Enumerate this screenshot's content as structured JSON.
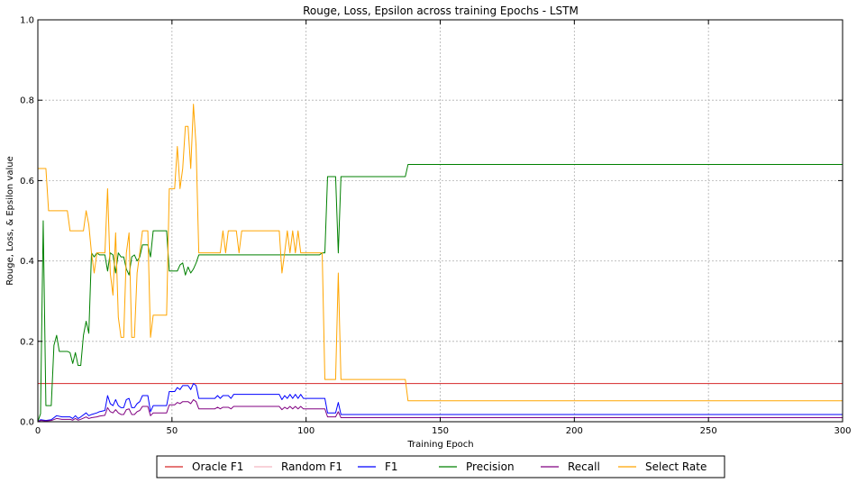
{
  "chart_data": {
    "type": "line",
    "title": "Rouge, Loss, Epsilon across training Epochs - LSTM",
    "xlabel": "Training Epoch",
    "ylabel": "Rouge, Loss, & Epsilon value",
    "xlim": [
      0,
      300
    ],
    "ylim": [
      0,
      1.0
    ],
    "xticks": [
      0,
      50,
      100,
      150,
      200,
      250,
      300
    ],
    "yticks": [
      0.0,
      0.2,
      0.4,
      0.6,
      0.8,
      1.0
    ],
    "ytick_labels": [
      "0.0",
      "0.2",
      "0.4",
      "0.6",
      "0.8",
      "1.0"
    ],
    "grid": true,
    "legend_position": "bottom-center",
    "series": [
      {
        "name": "Oracle F1",
        "color": "#d62728",
        "points": [
          [
            0,
            0.095
          ],
          [
            300,
            0.095
          ]
        ]
      },
      {
        "name": "Random F1",
        "color": "#f4b6c2",
        "points": [
          [
            0,
            0.0
          ],
          [
            300,
            0.0
          ]
        ]
      },
      {
        "name": "F1",
        "color": "#0000ff",
        "points": [
          [
            0,
            0.0
          ],
          [
            1,
            0.005
          ],
          [
            3,
            0.003
          ],
          [
            5,
            0.005
          ],
          [
            7,
            0.015
          ],
          [
            9,
            0.012
          ],
          [
            12,
            0.012
          ],
          [
            13,
            0.008
          ],
          [
            14,
            0.015
          ],
          [
            15,
            0.008
          ],
          [
            16,
            0.012
          ],
          [
            18,
            0.022
          ],
          [
            19,
            0.015
          ],
          [
            20,
            0.018
          ],
          [
            22,
            0.022
          ],
          [
            23,
            0.025
          ],
          [
            25,
            0.028
          ],
          [
            26,
            0.065
          ],
          [
            27,
            0.045
          ],
          [
            28,
            0.04
          ],
          [
            29,
            0.055
          ],
          [
            30,
            0.04
          ],
          [
            31,
            0.035
          ],
          [
            32,
            0.035
          ],
          [
            33,
            0.055
          ],
          [
            34,
            0.058
          ],
          [
            35,
            0.035
          ],
          [
            36,
            0.035
          ],
          [
            37,
            0.045
          ],
          [
            38,
            0.05
          ],
          [
            39,
            0.065
          ],
          [
            40,
            0.065
          ],
          [
            41,
            0.065
          ],
          [
            42,
            0.025
          ],
          [
            43,
            0.04
          ],
          [
            45,
            0.04
          ],
          [
            48,
            0.04
          ],
          [
            49,
            0.075
          ],
          [
            51,
            0.075
          ],
          [
            52,
            0.085
          ],
          [
            53,
            0.08
          ],
          [
            54,
            0.09
          ],
          [
            56,
            0.09
          ],
          [
            57,
            0.08
          ],
          [
            58,
            0.095
          ],
          [
            59,
            0.09
          ],
          [
            60,
            0.058
          ],
          [
            66,
            0.058
          ],
          [
            67,
            0.065
          ],
          [
            68,
            0.058
          ],
          [
            69,
            0.065
          ],
          [
            71,
            0.065
          ],
          [
            72,
            0.058
          ],
          [
            73,
            0.068
          ],
          [
            90,
            0.068
          ],
          [
            91,
            0.055
          ],
          [
            92,
            0.065
          ],
          [
            93,
            0.058
          ],
          [
            94,
            0.068
          ],
          [
            95,
            0.058
          ],
          [
            96,
            0.068
          ],
          [
            97,
            0.058
          ],
          [
            98,
            0.068
          ],
          [
            99,
            0.058
          ],
          [
            107,
            0.058
          ],
          [
            108,
            0.022
          ],
          [
            111,
            0.022
          ],
          [
            112,
            0.048
          ],
          [
            113,
            0.018
          ],
          [
            137,
            0.018
          ],
          [
            138,
            0.018
          ],
          [
            300,
            0.018
          ]
        ]
      },
      {
        "name": "Precision",
        "color": "#008000",
        "points": [
          [
            0,
            0.0
          ],
          [
            1,
            0.02
          ],
          [
            2,
            0.5
          ],
          [
            3,
            0.04
          ],
          [
            5,
            0.04
          ],
          [
            6,
            0.19
          ],
          [
            7,
            0.215
          ],
          [
            8,
            0.175
          ],
          [
            10,
            0.175
          ],
          [
            11,
            0.175
          ],
          [
            12,
            0.172
          ],
          [
            13,
            0.145
          ],
          [
            14,
            0.172
          ],
          [
            15,
            0.14
          ],
          [
            16,
            0.14
          ],
          [
            17,
            0.215
          ],
          [
            18,
            0.25
          ],
          [
            19,
            0.22
          ],
          [
            20,
            0.42
          ],
          [
            21,
            0.41
          ],
          [
            22,
            0.42
          ],
          [
            23,
            0.415
          ],
          [
            25,
            0.415
          ],
          [
            26,
            0.375
          ],
          [
            27,
            0.42
          ],
          [
            28,
            0.415
          ],
          [
            29,
            0.37
          ],
          [
            30,
            0.42
          ],
          [
            31,
            0.41
          ],
          [
            32,
            0.41
          ],
          [
            33,
            0.38
          ],
          [
            34,
            0.365
          ],
          [
            35,
            0.41
          ],
          [
            36,
            0.415
          ],
          [
            37,
            0.4
          ],
          [
            38,
            0.41
          ],
          [
            39,
            0.44
          ],
          [
            41,
            0.44
          ],
          [
            42,
            0.41
          ],
          [
            43,
            0.475
          ],
          [
            46,
            0.475
          ],
          [
            47,
            0.475
          ],
          [
            48,
            0.475
          ],
          [
            49,
            0.375
          ],
          [
            52,
            0.375
          ],
          [
            53,
            0.39
          ],
          [
            54,
            0.395
          ],
          [
            55,
            0.365
          ],
          [
            56,
            0.385
          ],
          [
            57,
            0.37
          ],
          [
            58,
            0.38
          ],
          [
            59,
            0.395
          ],
          [
            60,
            0.415
          ],
          [
            105,
            0.415
          ],
          [
            106,
            0.42
          ],
          [
            107,
            0.42
          ],
          [
            108,
            0.61
          ],
          [
            109,
            0.61
          ],
          [
            111,
            0.61
          ],
          [
            112,
            0.42
          ],
          [
            113,
            0.61
          ],
          [
            136,
            0.61
          ],
          [
            137,
            0.61
          ],
          [
            138,
            0.64
          ],
          [
            300,
            0.64
          ]
        ]
      },
      {
        "name": "Recall",
        "color": "#800080",
        "points": [
          [
            0,
            0.0
          ],
          [
            1,
            0.003
          ],
          [
            3,
            0.002
          ],
          [
            5,
            0.003
          ],
          [
            7,
            0.008
          ],
          [
            9,
            0.006
          ],
          [
            12,
            0.006
          ],
          [
            13,
            0.004
          ],
          [
            14,
            0.008
          ],
          [
            15,
            0.004
          ],
          [
            16,
            0.006
          ],
          [
            18,
            0.012
          ],
          [
            19,
            0.008
          ],
          [
            20,
            0.01
          ],
          [
            22,
            0.012
          ],
          [
            23,
            0.014
          ],
          [
            25,
            0.016
          ],
          [
            26,
            0.035
          ],
          [
            27,
            0.025
          ],
          [
            28,
            0.022
          ],
          [
            29,
            0.03
          ],
          [
            30,
            0.022
          ],
          [
            31,
            0.018
          ],
          [
            32,
            0.018
          ],
          [
            33,
            0.03
          ],
          [
            34,
            0.032
          ],
          [
            35,
            0.018
          ],
          [
            36,
            0.018
          ],
          [
            37,
            0.025
          ],
          [
            38,
            0.028
          ],
          [
            39,
            0.038
          ],
          [
            41,
            0.038
          ],
          [
            42,
            0.015
          ],
          [
            43,
            0.022
          ],
          [
            48,
            0.022
          ],
          [
            49,
            0.042
          ],
          [
            51,
            0.042
          ],
          [
            52,
            0.048
          ],
          [
            53,
            0.045
          ],
          [
            54,
            0.05
          ],
          [
            56,
            0.05
          ],
          [
            57,
            0.045
          ],
          [
            58,
            0.055
          ],
          [
            59,
            0.05
          ],
          [
            60,
            0.032
          ],
          [
            66,
            0.032
          ],
          [
            67,
            0.036
          ],
          [
            68,
            0.032
          ],
          [
            69,
            0.036
          ],
          [
            71,
            0.036
          ],
          [
            72,
            0.032
          ],
          [
            73,
            0.038
          ],
          [
            90,
            0.038
          ],
          [
            91,
            0.03
          ],
          [
            92,
            0.036
          ],
          [
            93,
            0.032
          ],
          [
            94,
            0.038
          ],
          [
            95,
            0.032
          ],
          [
            96,
            0.038
          ],
          [
            97,
            0.032
          ],
          [
            98,
            0.038
          ],
          [
            99,
            0.032
          ],
          [
            107,
            0.032
          ],
          [
            108,
            0.012
          ],
          [
            111,
            0.012
          ],
          [
            112,
            0.025
          ],
          [
            113,
            0.01
          ],
          [
            300,
            0.01
          ]
        ]
      },
      {
        "name": "Select Rate",
        "color": "#ffa500",
        "points": [
          [
            0,
            0.63
          ],
          [
            3,
            0.63
          ],
          [
            4,
            0.525
          ],
          [
            11,
            0.525
          ],
          [
            12,
            0.475
          ],
          [
            17,
            0.475
          ],
          [
            18,
            0.525
          ],
          [
            19,
            0.49
          ],
          [
            20,
            0.42
          ],
          [
            21,
            0.37
          ],
          [
            22,
            0.42
          ],
          [
            23,
            0.42
          ],
          [
            25,
            0.42
          ],
          [
            26,
            0.58
          ],
          [
            27,
            0.37
          ],
          [
            28,
            0.315
          ],
          [
            29,
            0.47
          ],
          [
            30,
            0.26
          ],
          [
            31,
            0.21
          ],
          [
            32,
            0.21
          ],
          [
            33,
            0.42
          ],
          [
            34,
            0.47
          ],
          [
            35,
            0.21
          ],
          [
            36,
            0.21
          ],
          [
            37,
            0.37
          ],
          [
            38,
            0.42
          ],
          [
            39,
            0.475
          ],
          [
            41,
            0.475
          ],
          [
            42,
            0.21
          ],
          [
            43,
            0.265
          ],
          [
            48,
            0.265
          ],
          [
            49,
            0.58
          ],
          [
            51,
            0.58
          ],
          [
            52,
            0.685
          ],
          [
            53,
            0.58
          ],
          [
            54,
            0.63
          ],
          [
            55,
            0.735
          ],
          [
            56,
            0.735
          ],
          [
            57,
            0.63
          ],
          [
            58,
            0.79
          ],
          [
            59,
            0.685
          ],
          [
            60,
            0.42
          ],
          [
            68,
            0.42
          ],
          [
            69,
            0.475
          ],
          [
            70,
            0.42
          ],
          [
            71,
            0.475
          ],
          [
            74,
            0.475
          ],
          [
            75,
            0.42
          ],
          [
            76,
            0.475
          ],
          [
            90,
            0.475
          ],
          [
            91,
            0.37
          ],
          [
            92,
            0.42
          ],
          [
            93,
            0.475
          ],
          [
            94,
            0.42
          ],
          [
            95,
            0.475
          ],
          [
            96,
            0.42
          ],
          [
            97,
            0.475
          ],
          [
            98,
            0.42
          ],
          [
            106,
            0.42
          ],
          [
            107,
            0.105
          ],
          [
            111,
            0.105
          ],
          [
            112,
            0.37
          ],
          [
            113,
            0.105
          ],
          [
            137,
            0.105
          ],
          [
            138,
            0.052
          ],
          [
            300,
            0.052
          ]
        ]
      }
    ]
  }
}
